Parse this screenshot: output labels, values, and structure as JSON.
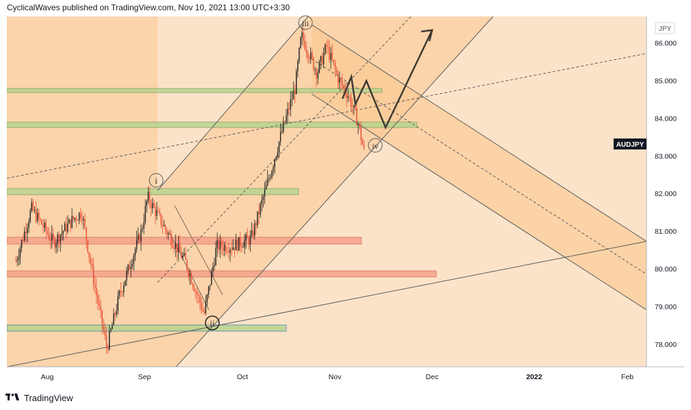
{
  "header": {
    "publisher_line": "CyclicalWaves published on TradingView.com, Nov 10, 2021 13:00 UTC+3:30"
  },
  "footer": {
    "brand": "TradingView"
  },
  "colors": {
    "background": "#fbe3c9",
    "channel_fill": "#fbc891",
    "up_candle": "#1b1b1b",
    "down_candle": "#e8482f",
    "green_zone": "#b9d58f",
    "red_zone": "#f4a28d",
    "blue_zone_border": "#2d6ea8",
    "symbol_badge": "#131722"
  },
  "chart_data": {
    "type": "candlestick",
    "symbol": "AUDJPY",
    "currency": "JPY",
    "last_price_label": "AUDJPY",
    "x_tick_labels": [
      "Aug",
      "Sep",
      "Oct",
      "Nov",
      "Dec",
      "2022",
      "Feb"
    ],
    "y_tick_labels": [
      "86.000",
      "85.000",
      "84.000",
      "83.000",
      "82.000",
      "81.000",
      "80.000",
      "79.000",
      "78.000"
    ],
    "ylim": [
      77.4,
      86.7
    ],
    "price_path_approx": [
      [
        "Jul 22",
        80.2
      ],
      [
        "Jul 27",
        81.6
      ],
      [
        "Aug 3",
        80.7
      ],
      [
        "Aug 9",
        81.3
      ],
      [
        "Aug 12",
        81.5
      ],
      [
        "Aug 16",
        79.6
      ],
      [
        "Aug 20",
        77.9
      ],
      [
        "Aug 24",
        79.3
      ],
      [
        "Aug 31",
        81.0
      ],
      [
        "Sep 2",
        81.9
      ],
      [
        "Sep 8",
        81.0
      ],
      [
        "Sep 14",
        80.2
      ],
      [
        "Sep 20",
        78.8
      ],
      [
        "Sep 24",
        80.6
      ],
      [
        "Sep 29",
        80.6
      ],
      [
        "Oct 5",
        80.8
      ],
      [
        "Oct 11",
        82.5
      ],
      [
        "Oct 15",
        83.7
      ],
      [
        "Oct 19",
        84.8
      ],
      [
        "Oct 21",
        86.2
      ],
      [
        "Oct 26",
        85.2
      ],
      [
        "Oct 29",
        85.9
      ],
      [
        "Nov 2",
        85.0
      ],
      [
        "Nov 5",
        84.6
      ],
      [
        "Nov 8",
        83.9
      ],
      [
        "Nov 10",
        83.1
      ]
    ],
    "wave_labels": [
      "i",
      "ii",
      "iii",
      "iv"
    ],
    "zones": [
      {
        "color": "green",
        "price_approx": 84.8
      },
      {
        "color": "green",
        "price_approx": 83.85
      },
      {
        "color": "green",
        "price_approx": 82.05
      },
      {
        "color": "red",
        "price_approx": 80.85
      },
      {
        "color": "red",
        "price_approx": 79.9
      },
      {
        "color": "green",
        "price_approx": 78.45
      }
    ],
    "projection_path": [
      [
        "Nov 8",
        84.7
      ],
      [
        "Nov 10",
        85.2
      ],
      [
        "Nov 11",
        84.4
      ],
      [
        "Nov 14",
        85.0
      ],
      [
        "Nov 19",
        83.8
      ],
      [
        "Nov 27",
        85.6
      ],
      [
        "Dec 1",
        86.4
      ]
    ]
  }
}
